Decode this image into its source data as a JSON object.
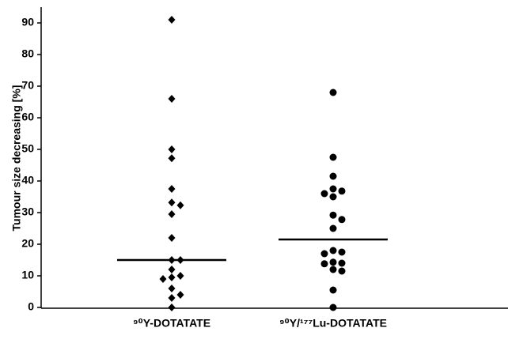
{
  "chart_data": {
    "type": "strip",
    "ylabel": "Tumour size decreasing [%]",
    "categories": [
      "⁹⁰Y-DOTATATE",
      "⁹⁰Y/¹⁷⁷Lu-DOTATATE"
    ],
    "series": [
      {
        "marker": "diamond",
        "color": "#000000",
        "values": [
          91,
          66,
          50,
          47.2,
          37.5,
          33.2,
          32.3,
          29.5,
          22,
          15,
          15,
          12,
          10,
          9.5,
          9,
          6,
          4,
          3,
          0
        ],
        "median": 15
      },
      {
        "marker": "circle",
        "color": "#000000",
        "values": [
          68,
          47.5,
          41.5,
          37.5,
          36.8,
          36,
          35,
          29.2,
          27.8,
          25,
          18,
          17.5,
          17,
          14.3,
          14,
          13.8,
          12,
          11.5,
          5.5,
          0
        ],
        "median": 21.5
      }
    ],
    "ylim": [
      0,
      95
    ],
    "yticks": [
      0,
      10,
      20,
      30,
      40,
      50,
      60,
      70,
      80,
      90
    ]
  }
}
